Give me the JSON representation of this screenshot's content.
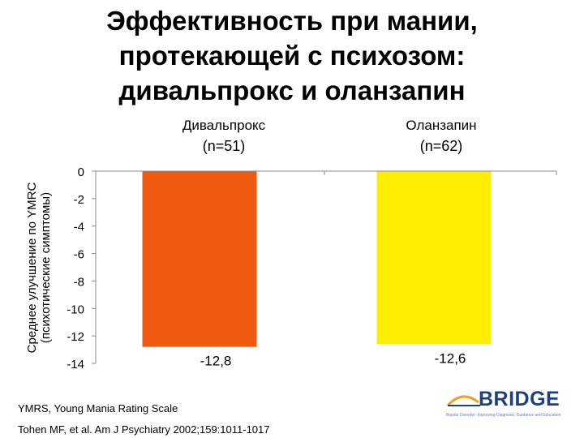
{
  "title": {
    "line1": "Эффективность при мании,",
    "line2": "протекающей с психозом:",
    "line3": "дивальпрокс и оланзапин"
  },
  "chart_data": {
    "type": "bar",
    "categories": [
      "Дивальпрокс",
      "Оланзапин"
    ],
    "category_n": [
      "(n=51)",
      "(n=62)"
    ],
    "values": [
      -12.8,
      -12.6
    ],
    "data_labels": [
      "-12,8",
      "-12,6"
    ],
    "bar_colors": [
      "#f05a10",
      "#ffee00"
    ],
    "ylabel_line1": "Среднее улучшение по YMRC",
    "ylabel_line2": "(психотические симптомы)",
    "ylim": [
      -14,
      0
    ],
    "yticks": [
      0,
      -2,
      -4,
      -6,
      -8,
      -10,
      -12,
      -14
    ],
    "ytick_labels": [
      "0",
      "-2",
      "-4",
      "-6",
      "-8",
      "-10",
      "-12",
      "-14"
    ],
    "grid": false
  },
  "footnotes": {
    "line1": "YMRS, Young Mania Rating Scale",
    "line2": "Tohen MF, et al. Am J Psychiatry 2002;159:1011-1017"
  },
  "logo": {
    "name": "BRIDGE",
    "tagline": "Bipolar Disorder: Improving Diagnosis, Guidance and Education",
    "color": "#1d3f84",
    "accent_color": "#f0a020"
  }
}
